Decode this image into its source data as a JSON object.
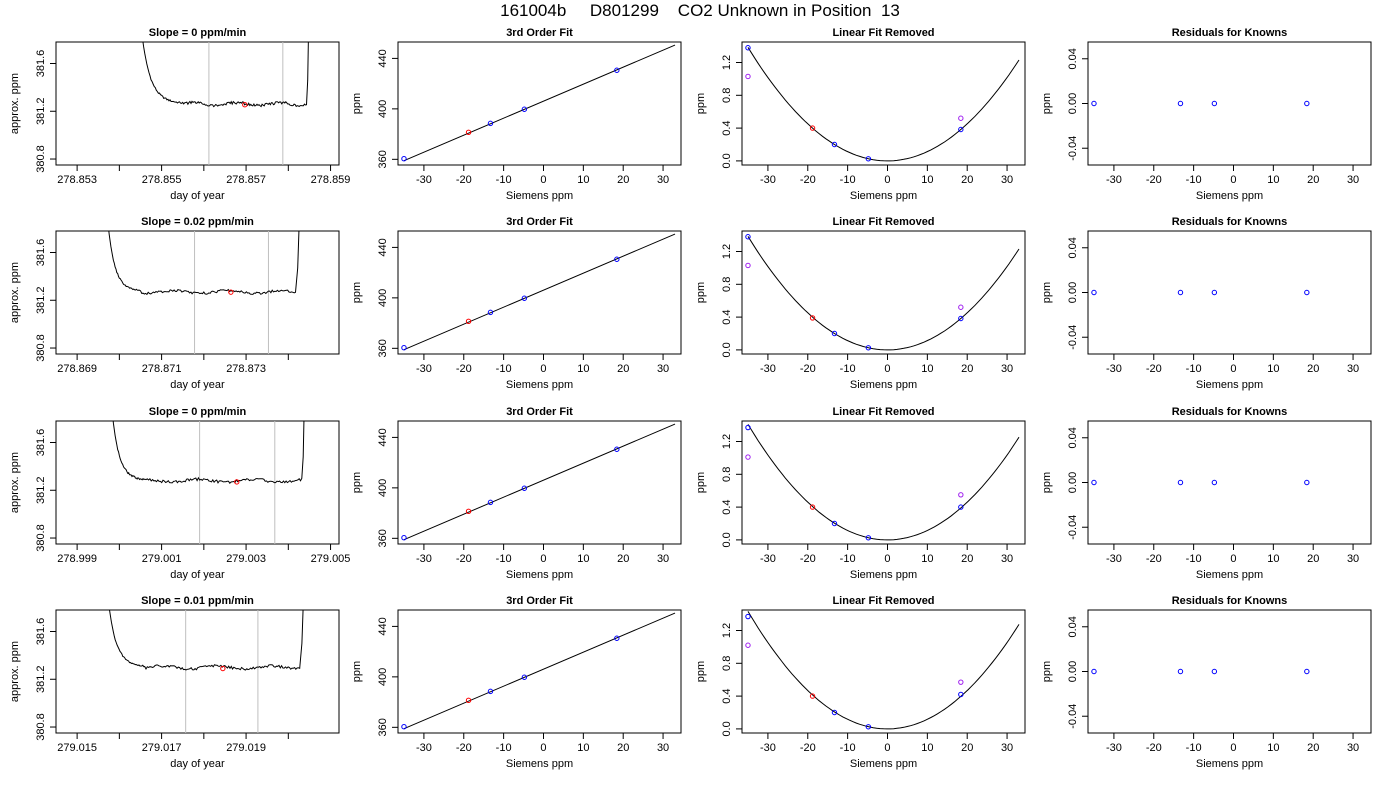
{
  "page": {
    "title": "161004b     D801299    CO2 Unknown in Position  13"
  },
  "colors": {
    "trace": "#000000",
    "window_line": "#bfbfbf",
    "unknown_point": "#ff0000",
    "standard_point": "#0000ff",
    "secondary_point": "#a020f0",
    "fit_curve": "#000000"
  },
  "chart_data": [
    {
      "panel": "r1-trace",
      "type": "line",
      "title": "Slope =  0  ppm/min",
      "xlabel": "day of year",
      "ylabel": "approx. ppm",
      "xlim": [
        278.8525,
        278.8592
      ],
      "ylim": [
        380.75,
        381.78
      ],
      "xticks": [
        278.853,
        278.855,
        278.857,
        278.859
      ],
      "xminor": [
        278.854,
        278.856,
        278.858
      ],
      "xtick_labels": [
        "278.853",
        "278.855",
        "278.857",
        "278.859"
      ],
      "yticks": [
        380.8,
        381.2,
        381.6
      ],
      "ytick_labels": [
        "380.8",
        "381.2",
        "381.6"
      ],
      "trace": {
        "start": 278.8545,
        "rise_end": 278.8555,
        "plateau_end": 278.85843,
        "end": 278.8585,
        "level": 381.26,
        "amp": 0.015
      },
      "windows": [
        278.85612,
        278.85787
      ],
      "unknown": [
        278.85697,
        381.255
      ]
    },
    {
      "panel": "r1-fit",
      "type": "line",
      "title": "3rd Order Fit",
      "xlabel": "Siemens ppm",
      "ylabel": "ppm",
      "xlim": [
        -36.5,
        34.5
      ],
      "ylim": [
        355.5,
        453
      ],
      "xticks": [
        -30,
        -20,
        -10,
        0,
        10,
        20,
        30
      ],
      "xtick_labels": [
        "-30",
        "-20",
        "-10",
        "0",
        "10",
        "20",
        "30"
      ],
      "yticks": [
        360,
        400,
        440
      ],
      "ytick_labels": [
        "360",
        "400",
        "440"
      ],
      "line": {
        "x": [
          -35,
          33
        ],
        "y": [
          358.9,
          450.6
        ]
      },
      "points": {
        "standards": [
          [
            -35,
            360.5
          ],
          [
            -13.3,
            388.5
          ],
          [
            -4.8,
            399.7
          ],
          [
            18.4,
            430.6
          ]
        ],
        "unknown": [
          [
            -18.8,
            381.4
          ]
        ]
      }
    },
    {
      "panel": "r1-lin",
      "type": "line",
      "title": "Linear Fit Removed",
      "xlabel": "Siemens ppm",
      "ylabel": "ppm",
      "xlim": [
        -36.5,
        34.5
      ],
      "ylim": [
        -0.05,
        1.45
      ],
      "xticks": [
        -30,
        -20,
        -10,
        0,
        10,
        20,
        30
      ],
      "xtick_labels": [
        "-30",
        "-20",
        "-10",
        "0",
        "10",
        "20",
        "30"
      ],
      "yticks": [
        0.0,
        0.4,
        0.8,
        1.2
      ],
      "ytick_labels": [
        "0.0",
        "0.4",
        "0.8",
        "1.2"
      ],
      "curve": {
        "coef": 0.00113,
        "x": [
          -35,
          33
        ]
      },
      "points": {
        "standards": [
          [
            -35,
            1.38
          ],
          [
            -13.3,
            0.2
          ],
          [
            -4.8,
            0.026
          ],
          [
            18.4,
            0.383
          ]
        ],
        "secondary": [
          [
            -35,
            1.03
          ],
          [
            18.4,
            0.52
          ]
        ],
        "unknown": [
          [
            -18.8,
            0.4
          ]
        ]
      }
    },
    {
      "panel": "r1-res",
      "type": "scatter",
      "title": "Residuals for Knowns",
      "xlabel": "Siemens ppm",
      "ylabel": "ppm",
      "xlim": [
        -36.5,
        34.5
      ],
      "ylim": [
        -0.055,
        0.055
      ],
      "xticks": [
        -30,
        -20,
        -10,
        0,
        10,
        20,
        30
      ],
      "xtick_labels": [
        "-30",
        "-20",
        "-10",
        "0",
        "10",
        "20",
        "30"
      ],
      "yticks": [
        -0.04,
        0.0,
        0.04
      ],
      "ytick_labels": [
        "-0.04",
        "0.00",
        "0.04"
      ],
      "points": {
        "standards": [
          [
            -35,
            0
          ],
          [
            -13.3,
            0
          ],
          [
            -4.8,
            0
          ],
          [
            18.4,
            0
          ]
        ]
      }
    },
    {
      "panel": "r2-trace",
      "type": "line",
      "title": "Slope =  0.02  ppm/min",
      "xlabel": "day of year",
      "ylabel": "approx. ppm",
      "xlim": [
        278.8685,
        278.8752
      ],
      "ylim": [
        380.75,
        381.78
      ],
      "xticks": [
        278.869,
        278.871,
        278.873
      ],
      "xminor": [
        278.87,
        278.872,
        278.874
      ],
      "xtick_labels": [
        "278.869",
        "278.871",
        "278.873"
      ],
      "yticks": [
        380.8,
        381.2,
        381.6
      ],
      "ytick_labels": [
        "380.8",
        "381.2",
        "381.6"
      ],
      "trace": {
        "start": 278.8697,
        "rise_end": 278.8705,
        "plateau_end": 278.87417,
        "end": 278.8743,
        "level": 381.27,
        "amp": 0.013
      },
      "windows": [
        278.87178,
        278.87353
      ],
      "unknown": [
        278.87264,
        381.268
      ]
    },
    {
      "panel": "r2-fit",
      "type": "line",
      "title": "3rd Order Fit",
      "xlabel": "Siemens ppm",
      "ylabel": "ppm",
      "xlim": [
        -36.5,
        34.5
      ],
      "ylim": [
        355.5,
        453
      ],
      "xticks": [
        -30,
        -20,
        -10,
        0,
        10,
        20,
        30
      ],
      "xtick_labels": [
        "-30",
        "-20",
        "-10",
        "0",
        "10",
        "20",
        "30"
      ],
      "yticks": [
        360,
        400,
        440
      ],
      "ytick_labels": [
        "360",
        "400",
        "440"
      ],
      "line": {
        "x": [
          -35,
          33
        ],
        "y": [
          358.9,
          450.6
        ]
      },
      "points": {
        "standards": [
          [
            -35,
            360.5
          ],
          [
            -13.3,
            388.5
          ],
          [
            -4.8,
            399.7
          ],
          [
            18.4,
            430.6
          ]
        ],
        "unknown": [
          [
            -18.8,
            381.4
          ]
        ]
      }
    },
    {
      "panel": "r2-lin",
      "type": "line",
      "title": "Linear Fit Removed",
      "xlabel": "Siemens ppm",
      "ylabel": "ppm",
      "xlim": [
        -36.5,
        34.5
      ],
      "ylim": [
        -0.05,
        1.45
      ],
      "xticks": [
        -30,
        -20,
        -10,
        0,
        10,
        20,
        30
      ],
      "xtick_labels": [
        "-30",
        "-20",
        "-10",
        "0",
        "10",
        "20",
        "30"
      ],
      "yticks": [
        0.0,
        0.4,
        0.8,
        1.2
      ],
      "ytick_labels": [
        "0.0",
        "0.4",
        "0.8",
        "1.2"
      ],
      "curve": {
        "coef": 0.00113,
        "x": [
          -35,
          33
        ]
      },
      "points": {
        "standards": [
          [
            -35,
            1.38
          ],
          [
            -13.3,
            0.2
          ],
          [
            -4.8,
            0.026
          ],
          [
            18.4,
            0.383
          ]
        ],
        "secondary": [
          [
            -35,
            1.03
          ],
          [
            18.4,
            0.52
          ]
        ],
        "unknown": [
          [
            -18.8,
            0.39
          ]
        ]
      }
    },
    {
      "panel": "r2-res",
      "type": "scatter",
      "title": "Residuals for Knowns",
      "xlabel": "Siemens ppm",
      "ylabel": "ppm",
      "xlim": [
        -36.5,
        34.5
      ],
      "ylim": [
        -0.055,
        0.055
      ],
      "xticks": [
        -30,
        -20,
        -10,
        0,
        10,
        20,
        30
      ],
      "xtick_labels": [
        "-30",
        "-20",
        "-10",
        "0",
        "10",
        "20",
        "30"
      ],
      "yticks": [
        -0.04,
        0.0,
        0.04
      ],
      "ytick_labels": [
        "-0.04",
        "0.00",
        "0.04"
      ],
      "points": {
        "standards": [
          [
            -35,
            0
          ],
          [
            -13.3,
            0
          ],
          [
            -4.8,
            0
          ],
          [
            18.4,
            0
          ]
        ]
      }
    },
    {
      "panel": "r3-trace",
      "type": "line",
      "title": "Slope =  0  ppm/min",
      "xlabel": "day of year",
      "ylabel": "approx. ppm",
      "xlim": [
        278.9985,
        279.0052
      ],
      "ylim": [
        380.75,
        381.78
      ],
      "xticks": [
        278.999,
        279.001,
        279.003,
        279.005
      ],
      "xminor": [
        279.0,
        279.002,
        279.004
      ],
      "xtick_labels": [
        "278.999",
        "279.001",
        "279.003",
        "279.005"
      ],
      "yticks": [
        380.8,
        381.2,
        381.6
      ],
      "ytick_labels": [
        "380.8",
        "381.2",
        "381.6"
      ],
      "trace": {
        "start": 278.9998,
        "rise_end": 279.0006,
        "plateau_end": 279.00432,
        "end": 279.0044,
        "level": 381.28,
        "amp": 0.015
      },
      "windows": [
        279.0019,
        279.00368
      ],
      "unknown": [
        279.00278,
        381.27
      ]
    },
    {
      "panel": "r3-fit",
      "type": "line",
      "title": "3rd Order Fit",
      "xlabel": "Siemens ppm",
      "ylabel": "ppm",
      "xlim": [
        -36.5,
        34.5
      ],
      "ylim": [
        355.5,
        453
      ],
      "xticks": [
        -30,
        -20,
        -10,
        0,
        10,
        20,
        30
      ],
      "xtick_labels": [
        "-30",
        "-20",
        "-10",
        "0",
        "10",
        "20",
        "30"
      ],
      "yticks": [
        360,
        400,
        440
      ],
      "ytick_labels": [
        "360",
        "400",
        "440"
      ],
      "line": {
        "x": [
          -35,
          33
        ],
        "y": [
          358.9,
          450.6
        ]
      },
      "points": {
        "standards": [
          [
            -35,
            360.5
          ],
          [
            -13.3,
            388.5
          ],
          [
            -4.8,
            399.7
          ],
          [
            18.4,
            430.6
          ]
        ],
        "unknown": [
          [
            -18.8,
            381.4
          ]
        ]
      }
    },
    {
      "panel": "r3-lin",
      "type": "line",
      "title": "Linear Fit Removed",
      "xlabel": "Siemens ppm",
      "ylabel": "ppm",
      "xlim": [
        -36.5,
        34.5
      ],
      "ylim": [
        -0.05,
        1.45
      ],
      "xticks": [
        -30,
        -20,
        -10,
        0,
        10,
        20,
        30
      ],
      "xtick_labels": [
        "-30",
        "-20",
        "-10",
        "0",
        "10",
        "20",
        "30"
      ],
      "yticks": [
        0.0,
        0.4,
        0.8,
        1.2
      ],
      "ytick_labels": [
        "0.0",
        "0.4",
        "0.8",
        "1.2"
      ],
      "curve": {
        "coef": 0.00115,
        "x": [
          -35,
          33
        ]
      },
      "points": {
        "standards": [
          [
            -35,
            1.37
          ],
          [
            -13.3,
            0.2
          ],
          [
            -4.8,
            0.026
          ],
          [
            18.4,
            0.4
          ]
        ],
        "secondary": [
          [
            -35,
            1.01
          ],
          [
            18.4,
            0.55
          ]
        ],
        "unknown": [
          [
            -18.8,
            0.4
          ]
        ]
      }
    },
    {
      "panel": "r3-res",
      "type": "scatter",
      "title": "Residuals for Knowns",
      "xlabel": "Siemens ppm",
      "ylabel": "ppm",
      "xlim": [
        -36.5,
        34.5
      ],
      "ylim": [
        -0.055,
        0.055
      ],
      "xticks": [
        -30,
        -20,
        -10,
        0,
        10,
        20,
        30
      ],
      "xtick_labels": [
        "-30",
        "-20",
        "-10",
        "0",
        "10",
        "20",
        "30"
      ],
      "yticks": [
        -0.04,
        0.0,
        0.04
      ],
      "ytick_labels": [
        "-0.04",
        "0.00",
        "0.04"
      ],
      "points": {
        "standards": [
          [
            -35,
            0
          ],
          [
            -13.3,
            0
          ],
          [
            -4.8,
            0
          ],
          [
            18.4,
            0
          ]
        ]
      }
    },
    {
      "panel": "r4-trace",
      "type": "line",
      "title": "Slope =  0.01  ppm/min",
      "xlabel": "day of year",
      "ylabel": "approx. ppm",
      "xlim": [
        279.0145,
        279.0212
      ],
      "ylim": [
        380.75,
        381.78
      ],
      "xticks": [
        279.015,
        279.017,
        279.019
      ],
      "xminor": [
        279.016,
        279.018,
        279.02
      ],
      "xtick_labels": [
        "279.015",
        "279.017",
        "279.019"
      ],
      "yticks": [
        380.8,
        381.2,
        381.6
      ],
      "ytick_labels": [
        "380.8",
        "381.2",
        "381.6"
      ],
      "trace": {
        "start": 279.0157,
        "rise_end": 279.0166,
        "plateau_end": 279.02027,
        "end": 279.0204,
        "level": 381.3,
        "amp": 0.014
      },
      "windows": [
        279.01757,
        279.01928
      ],
      "unknown": [
        279.01845,
        381.29
      ]
    },
    {
      "panel": "r4-fit",
      "type": "line",
      "title": "3rd Order Fit",
      "xlabel": "Siemens ppm",
      "ylabel": "ppm",
      "xlim": [
        -36.5,
        34.5
      ],
      "ylim": [
        355.5,
        453
      ],
      "xticks": [
        -30,
        -20,
        -10,
        0,
        10,
        20,
        30
      ],
      "xtick_labels": [
        "-30",
        "-20",
        "-10",
        "0",
        "10",
        "20",
        "30"
      ],
      "yticks": [
        360,
        400,
        440
      ],
      "ytick_labels": [
        "360",
        "400",
        "440"
      ],
      "line": {
        "x": [
          -35,
          33
        ],
        "y": [
          358.9,
          450.6
        ]
      },
      "points": {
        "standards": [
          [
            -35,
            360.5
          ],
          [
            -13.3,
            388.5
          ],
          [
            -4.8,
            399.7
          ],
          [
            18.4,
            430.6
          ]
        ],
        "unknown": [
          [
            -18.8,
            381.4
          ]
        ]
      }
    },
    {
      "panel": "r4-lin",
      "type": "line",
      "title": "Linear Fit Removed",
      "xlabel": "Siemens ppm",
      "ylabel": "ppm",
      "xlim": [
        -36.5,
        34.5
      ],
      "ylim": [
        -0.05,
        1.45
      ],
      "xticks": [
        -30,
        -20,
        -10,
        0,
        10,
        20,
        30
      ],
      "xtick_labels": [
        "-30",
        "-20",
        "-10",
        "0",
        "10",
        "20",
        "30"
      ],
      "yticks": [
        0.0,
        0.4,
        0.8,
        1.2
      ],
      "ytick_labels": [
        "0.0",
        "0.4",
        "0.8",
        "1.2"
      ],
      "curve": {
        "coef": 0.00117,
        "x": [
          -35,
          33
        ]
      },
      "points": {
        "standards": [
          [
            -35,
            1.37
          ],
          [
            -13.3,
            0.2
          ],
          [
            -4.8,
            0.026
          ],
          [
            18.4,
            0.42
          ]
        ],
        "secondary": [
          [
            -35,
            1.02
          ],
          [
            18.4,
            0.57
          ]
        ],
        "unknown": [
          [
            -18.8,
            0.4
          ]
        ]
      }
    },
    {
      "panel": "r4-res",
      "type": "scatter",
      "title": "Residuals for Knowns",
      "xlabel": "Siemens ppm",
      "ylabel": "ppm",
      "xlim": [
        -36.5,
        34.5
      ],
      "ylim": [
        -0.055,
        0.055
      ],
      "xticks": [
        -30,
        -20,
        -10,
        0,
        10,
        20,
        30
      ],
      "xtick_labels": [
        "-30",
        "-20",
        "-10",
        "0",
        "10",
        "20",
        "30"
      ],
      "yticks": [
        -0.04,
        0.0,
        0.04
      ],
      "ytick_labels": [
        "-0.04",
        "0.00",
        "0.04"
      ],
      "points": {
        "standards": [
          [
            -35,
            0
          ],
          [
            -13.3,
            0
          ],
          [
            -4.8,
            0
          ],
          [
            18.4,
            0
          ]
        ]
      }
    }
  ]
}
